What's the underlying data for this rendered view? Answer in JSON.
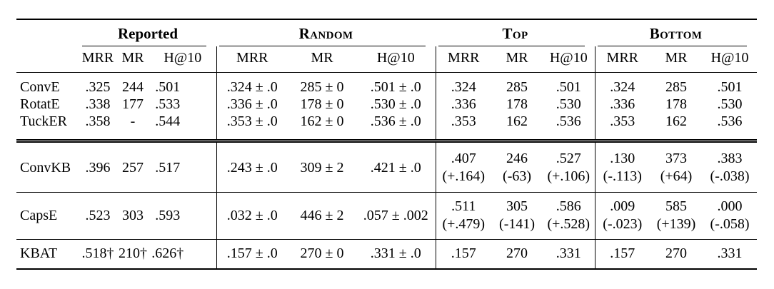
{
  "page": {
    "background": "#ffffff",
    "ink": "#000000"
  },
  "table": {
    "groups": {
      "reported": "Reported",
      "random": "Random",
      "top": "Top",
      "bottom": "Bottom"
    },
    "metrics": {
      "mrr": "MRR",
      "mr": "MR",
      "h10": "H@10"
    },
    "rows": [
      {
        "model": "ConvE",
        "reported": {
          "mrr": ".325",
          "mr": "244",
          "h10": ".501"
        },
        "random": {
          "mrr": ".324 ± .0",
          "mr": "285 ± 0",
          "h10": ".501 ± .0"
        },
        "top": {
          "mrr": ".324",
          "mr": "285",
          "h10": ".501"
        },
        "bottom": {
          "mrr": ".324",
          "mr": "285",
          "h10": ".501"
        }
      },
      {
        "model": "RotatE",
        "reported": {
          "mrr": ".338",
          "mr": "177",
          "h10": ".533"
        },
        "random": {
          "mrr": ".336 ± .0",
          "mr": "178 ± 0",
          "h10": ".530 ± .0"
        },
        "top": {
          "mrr": ".336",
          "mr": "178",
          "h10": ".530"
        },
        "bottom": {
          "mrr": ".336",
          "mr": "178",
          "h10": ".530"
        }
      },
      {
        "model": "TuckER",
        "reported": {
          "mrr": ".358",
          "mr": "-",
          "h10": ".544"
        },
        "random": {
          "mrr": ".353 ± .0",
          "mr": "162 ± 0",
          "h10": ".536 ± .0"
        },
        "top": {
          "mrr": ".353",
          "mr": "162",
          "h10": ".536"
        },
        "bottom": {
          "mrr": ".353",
          "mr": "162",
          "h10": ".536"
        }
      },
      {
        "model": "ConvKB",
        "reported": {
          "mrr": ".396",
          "mr": "257",
          "h10": ".517"
        },
        "random": {
          "mrr": ".243 ± .0",
          "mr": "309 ± 2",
          "h10": ".421 ± .0"
        },
        "top": {
          "mrr": ".407",
          "mrr_d": "(+.164)",
          "mr": "246",
          "mr_d": "(-63)",
          "h10": ".527",
          "h10_d": "(+.106)"
        },
        "bottom": {
          "mrr": ".130",
          "mrr_d": "(-.113)",
          "mr": "373",
          "mr_d": "(+64)",
          "h10": ".383",
          "h10_d": "(-.038)"
        }
      },
      {
        "model": "CapsE",
        "reported": {
          "mrr": ".523",
          "mr": "303",
          "h10": ".593"
        },
        "random": {
          "mrr": ".032 ± .0",
          "mr": "446 ± 2",
          "h10": ".057 ± .002"
        },
        "top": {
          "mrr": ".511",
          "mrr_d": "(+.479)",
          "mr": "305",
          "mr_d": "(-141)",
          "h10": ".586",
          "h10_d": "(+.528)"
        },
        "bottom": {
          "mrr": ".009",
          "mrr_d": "(-.023)",
          "mr": "585",
          "mr_d": "(+139)",
          "h10": ".000",
          "h10_d": "(-.058)"
        }
      },
      {
        "model": "KBAT",
        "reported": {
          "mrr": ".518†",
          "mr": "210†",
          "h10": ".626†"
        },
        "random": {
          "mrr": ".157 ± .0",
          "mr": "270 ± 0",
          "h10": ".331 ± .0"
        },
        "top": {
          "mrr": ".157",
          "mr": "270",
          "h10": ".331"
        },
        "bottom": {
          "mrr": ".157",
          "mr": "270",
          "h10": ".331"
        }
      }
    ]
  }
}
